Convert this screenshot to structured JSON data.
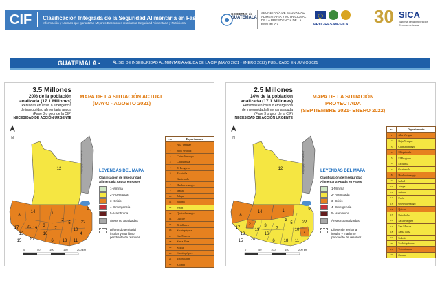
{
  "header": {
    "cif_short": "CIF",
    "cif_title": "Clasificación Integrada de la Seguridad Alimentaria en Fases",
    "cif_subtitle": "Información y Normas que garantizan Mejores Decisiones relativas a Seguridad Alimentaria y Nutricional",
    "gobierno_line1": "GOBIERNO de",
    "gobierno_line2": "GUATEMALA",
    "sesan_text": "SECRETARÍA DE SEGURIDAD ALIMENTARIA Y NUTRICIONAL DE LA PRESIDENCIA DE LA REPÚBLICA",
    "progresan": "PROGRESAN-SICA",
    "sica_anniv": "30",
    "sica": "SICA",
    "sica_sub": "Sistema de la Integración Centroamericana"
  },
  "banner": {
    "country": "GUATEMALA -",
    "subtitle": "ÁLISIS DE INSEGURIDAD ALIMENTARIA AGUDA DE LA CIF  (MAYO 2021 - ENERO 2022) PUBLICADO EN JUNIO 2021"
  },
  "current": {
    "stat_big": "3.5 Millones",
    "stat_pct": "20% de la población",
    "stat_analyzed": "analizada (17.1 Millones)",
    "stat_desc1": "Personas en crisis o emergencia",
    "stat_desc2": "de inseguridad alimentaria aguda",
    "stat_desc3": "(Fase 3 o peor de la CIF)",
    "stat_urgent": "NECESIDAD DE ACCIÓN URGENTE",
    "title1": "MAPA DE LA SITUACIÓN ACTUAL",
    "title2": "(MAYO - AGOSTO 2021)"
  },
  "projected": {
    "stat_big": "2.5 Millones",
    "stat_pct": "14% de la población",
    "stat_analyzed": "analizada (17.1 Millones)",
    "stat_desc1": "Personas en crisis o emergencia",
    "stat_desc2": "de inseguridad alimentaria aguda",
    "stat_desc3": "(Fase 3 o peor de la CIF)",
    "stat_urgent": "NECESIDAD DE ACCIÓN URGENTE",
    "title1": "MAPA DE LA SITUACIÓN PROYECTADA",
    "title2": "(SEPTIEMBRE 2021- ENERO 2022)"
  },
  "legend": {
    "title": "LEYENDAS DEL MAPA",
    "subtitle1": "Clasificación de Inseguridad",
    "subtitle2": "Alimentaria Aguda en Fases",
    "phases": [
      {
        "label": "1-Mínima",
        "color": "#cde6c2"
      },
      {
        "label": "2- Acentuada",
        "color": "#f5e642"
      },
      {
        "label": "3- Crisis",
        "color": "#e6811f"
      },
      {
        "label": "4- Emergencia",
        "color": "#c8323a"
      },
      {
        "label": "5- Hambruna",
        "color": "#641d1d"
      }
    ],
    "not_analyzed": "Áreas no analizadas",
    "dispute1": "Diferendo territorial",
    "dispute2": "insular y marítimo",
    "dispute3": "pendiente de resolver",
    "limits": "Límites no definidos"
  },
  "table": {
    "col_no": "No",
    "col_dept": "Departamento",
    "departments": [
      "Alta Verapaz",
      "Baja Verapaz",
      "Chimaltenango",
      "Chiquimula",
      "El Progreso",
      "Escuintla",
      "Guatemala",
      "Huehuetenango",
      "Izabal",
      "Jalapa",
      "Jutiapa",
      "Petén",
      "Quetzaltenango",
      "Quiché",
      "Retalhuleu",
      "Sacatepéquez",
      "San Marcos",
      "Santa Rosa",
      "Sololá",
      "Suchitepéquez",
      "Totonicapán",
      "Zacapa"
    ],
    "current_phase": [
      3,
      3,
      3,
      3,
      3,
      3,
      3,
      3,
      3,
      3,
      3,
      2,
      3,
      3,
      3,
      3,
      3,
      3,
      3,
      3,
      3,
      3
    ],
    "projected_phase": [
      3,
      2,
      2,
      3,
      2,
      2,
      2,
      3,
      2,
      2,
      2,
      2,
      2,
      3,
      2,
      2,
      2,
      2,
      2,
      2,
      3,
      2
    ]
  },
  "scale": {
    "ticks": [
      "0",
      "50",
      "100",
      "150",
      "200 km"
    ]
  }
}
